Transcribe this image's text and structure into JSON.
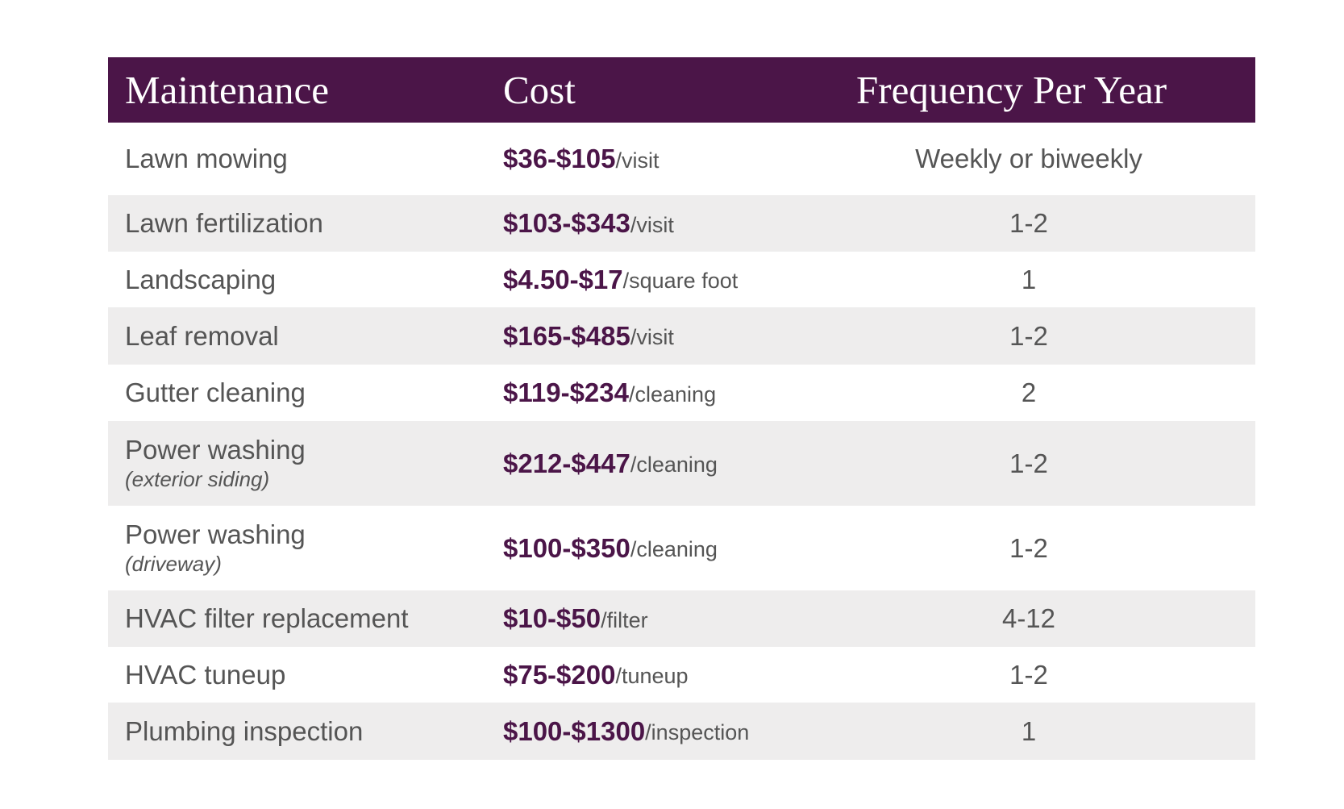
{
  "table": {
    "headers": [
      "Maintenance",
      "Cost",
      "Frequency Per Year"
    ],
    "rows": [
      {
        "name": "Lawn mowing",
        "cost": "$36-$105",
        "unit": "/visit",
        "frequency": "Weekly or biweekly"
      },
      {
        "name": "Lawn fertilization",
        "cost": "$103-$343",
        "unit": "/visit",
        "frequency": "1-2"
      },
      {
        "name": "Landscaping",
        "cost": "$4.50-$17",
        "unit": "/square foot",
        "frequency": "1"
      },
      {
        "name": "Leaf removal",
        "cost": "$165-$485",
        "unit": "/visit",
        "frequency": "1-2"
      },
      {
        "name": "Gutter cleaning",
        "cost": "$119-$234",
        "unit": "/cleaning",
        "frequency": "2"
      },
      {
        "name": "Power washing",
        "note": "(exterior siding)",
        "cost": "$212-$447",
        "unit": "/cleaning",
        "frequency": "1-2"
      },
      {
        "name": "Power washing",
        "note": "(driveway)",
        "cost": "$100-$350",
        "unit": "/cleaning",
        "frequency": "1-2"
      },
      {
        "name": "HVAC filter replacement",
        "cost": "$10-$50",
        "unit": "/filter",
        "frequency": "4-12"
      },
      {
        "name": "HVAC tuneup",
        "cost": "$75-$200",
        "unit": "/tuneup",
        "frequency": "1-2"
      },
      {
        "name": "Plumbing inspection",
        "cost": "$100-$1300",
        "unit": "/inspection",
        "frequency": "1"
      }
    ]
  }
}
